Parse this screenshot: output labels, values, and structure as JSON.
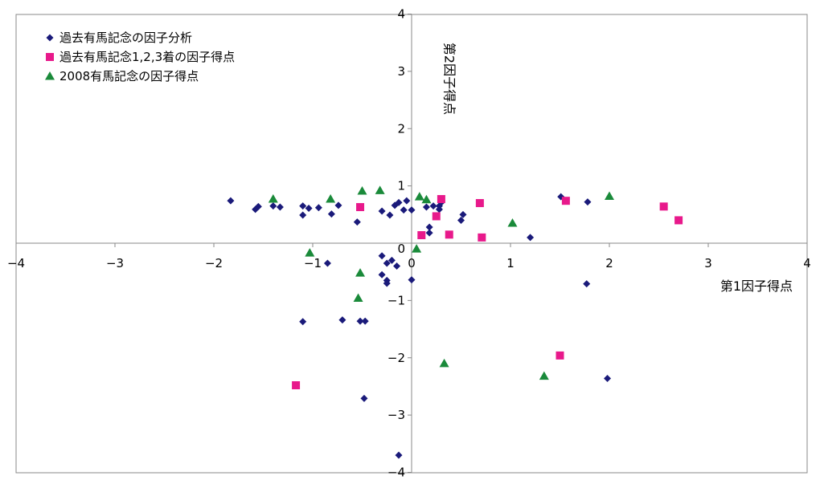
{
  "chart_data": {
    "type": "scatter",
    "xlabel": "第1因子得点",
    "ylabel": "第2因子得点",
    "xlim": [
      -4,
      4
    ],
    "ylim": [
      -4,
      4
    ],
    "x_ticks": [
      -4,
      -3,
      -2,
      -1,
      0,
      1,
      2,
      3,
      4
    ],
    "y_ticks": [
      -4,
      -3,
      -2,
      -1,
      0,
      1,
      2,
      3,
      4
    ],
    "grid": false,
    "legend": "top-left",
    "series": [
      {
        "name": "過去有馬記念の因子分析",
        "marker": "diamond",
        "color": "#1a1a7a",
        "points": [
          [
            -1.83,
            0.74
          ],
          [
            -1.58,
            0.59
          ],
          [
            -1.55,
            0.64
          ],
          [
            -1.4,
            0.65
          ],
          [
            -1.33,
            0.63
          ],
          [
            -1.1,
            0.65
          ],
          [
            -1.1,
            0.49
          ],
          [
            -1.04,
            0.61
          ],
          [
            -0.94,
            0.62
          ],
          [
            -0.81,
            0.51
          ],
          [
            -0.74,
            0.66
          ],
          [
            -0.55,
            0.37
          ],
          [
            -0.3,
            0.56
          ],
          [
            -0.22,
            0.49
          ],
          [
            -0.17,
            0.66
          ],
          [
            -0.13,
            0.71
          ],
          [
            -0.08,
            0.58
          ],
          [
            -0.05,
            0.74
          ],
          [
            0.0,
            0.58
          ],
          [
            0.15,
            0.63
          ],
          [
            0.18,
            0.18
          ],
          [
            0.18,
            0.28
          ],
          [
            0.22,
            0.65
          ],
          [
            0.28,
            0.59
          ],
          [
            0.28,
            0.65
          ],
          [
            0.3,
            0.71
          ],
          [
            0.5,
            0.4
          ],
          [
            0.52,
            0.5
          ],
          [
            1.2,
            0.1
          ],
          [
            1.51,
            0.81
          ],
          [
            1.78,
            0.72
          ],
          [
            -0.3,
            -0.22
          ],
          [
            -0.25,
            -0.35
          ],
          [
            -0.2,
            -0.3
          ],
          [
            -0.3,
            -0.55
          ],
          [
            -0.25,
            -0.65
          ],
          [
            -0.15,
            -0.4
          ],
          [
            -0.85,
            -0.35
          ],
          [
            -0.25,
            -0.7
          ],
          [
            0.0,
            -0.64
          ],
          [
            1.77,
            -0.71
          ],
          [
            -1.1,
            -1.37
          ],
          [
            -0.7,
            -1.34
          ],
          [
            -0.52,
            -1.36
          ],
          [
            -0.47,
            -1.36
          ],
          [
            -0.48,
            -2.71
          ],
          [
            -0.13,
            -3.7
          ],
          [
            1.98,
            -2.36
          ]
        ]
      },
      {
        "name": "過去有馬記念1,2,3着の因子得点",
        "marker": "square",
        "color": "#e8198b",
        "points": [
          [
            -0.52,
            0.63
          ],
          [
            0.1,
            0.14
          ],
          [
            0.3,
            0.77
          ],
          [
            0.25,
            0.47
          ],
          [
            0.38,
            0.15
          ],
          [
            0.69,
            0.7
          ],
          [
            0.71,
            0.1
          ],
          [
            1.56,
            0.74
          ],
          [
            2.55,
            0.64
          ],
          [
            2.7,
            0.4
          ],
          [
            1.5,
            -1.96
          ],
          [
            -1.17,
            -2.48
          ]
        ]
      },
      {
        "name": "2008有馬記念の因子得点",
        "marker": "triangle",
        "color": "#1a8a3a",
        "points": [
          [
            -1.4,
            0.77
          ],
          [
            -0.82,
            0.77
          ],
          [
            -0.5,
            0.91
          ],
          [
            -0.32,
            0.92
          ],
          [
            0.08,
            0.81
          ],
          [
            0.15,
            0.76
          ],
          [
            1.02,
            0.35
          ],
          [
            2.0,
            0.82
          ],
          [
            -1.03,
            -0.17
          ],
          [
            0.05,
            -0.1
          ],
          [
            -0.52,
            -0.52
          ],
          [
            -0.54,
            -0.96
          ],
          [
            0.33,
            -2.1
          ],
          [
            1.34,
            -2.32
          ]
        ]
      }
    ]
  }
}
